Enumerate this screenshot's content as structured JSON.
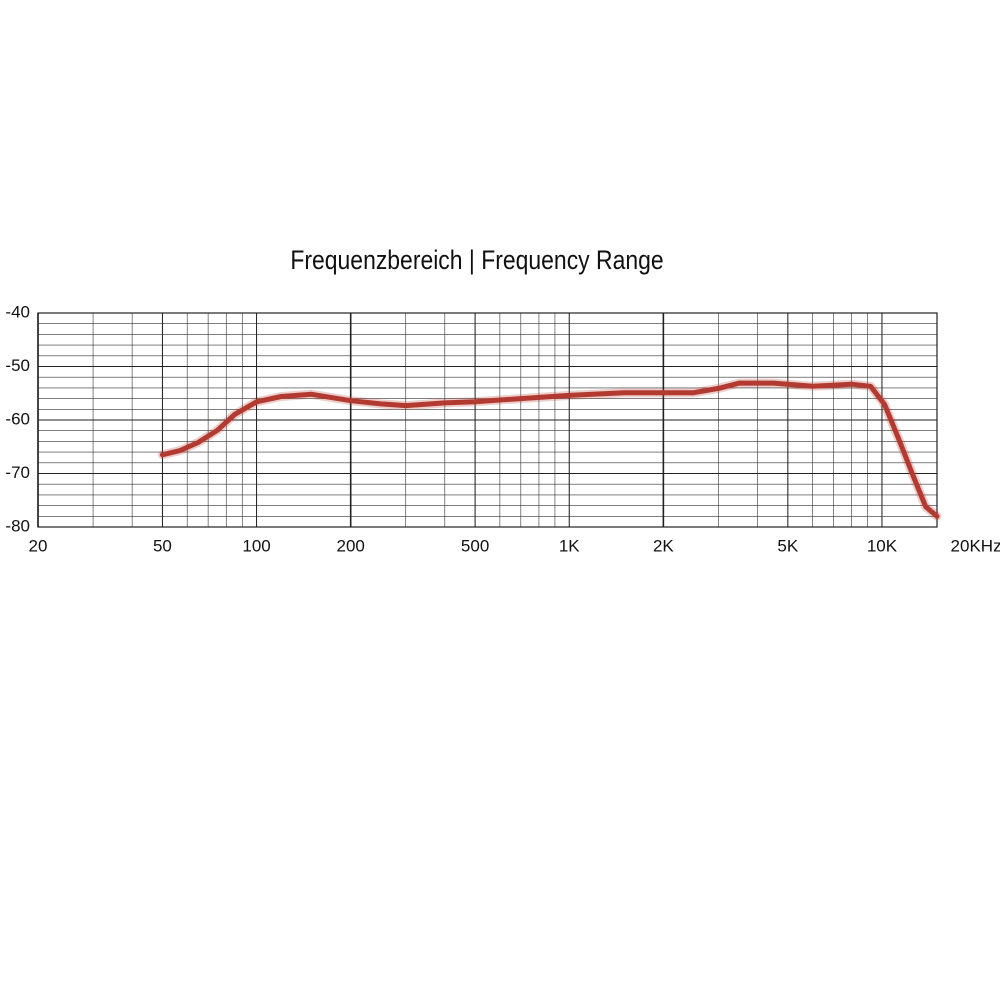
{
  "chart_data": {
    "type": "line",
    "title": "Frequenzbereich | Frequency Range",
    "x": [
      50,
      57,
      65,
      75,
      85,
      100,
      120,
      150,
      200,
      250,
      300,
      400,
      500,
      700,
      1000,
      1500,
      2000,
      2500,
      3000,
      3500,
      4500,
      6000,
      8000,
      9200,
      10200,
      11400,
      12500,
      13800,
      15000
    ],
    "series": [
      {
        "color": "#b23a30",
        "values": [
          -66.5,
          -65.7,
          -64.2,
          -61.9,
          -59,
          -56.6,
          -55.6,
          -55.2,
          -56.4,
          -57,
          -57.3,
          -56.8,
          -56.6,
          -56,
          -55.4,
          -54.9,
          -54.9,
          -54.9,
          -54.1,
          -53.1,
          -53.1,
          -53.7,
          -53.3,
          -53.7,
          -57.1,
          -64,
          -70,
          -76.2,
          -78
        ]
      }
    ],
    "xlog": true,
    "xlim": [
      20,
      15000
    ],
    "xticks": [
      20,
      50,
      100,
      200,
      500,
      {
        "value": 1000,
        "label": "1K"
      },
      {
        "value": 2000,
        "label": "2K"
      },
      {
        "value": 5000,
        "label": "5K"
      },
      {
        "value": 10000,
        "label": "10K"
      },
      {
        "value": 20000,
        "label": "20KHz"
      }
    ],
    "ylim": [
      -80,
      -40
    ],
    "yticks": [
      -40,
      -50,
      -60,
      -70,
      -80
    ],
    "grid": true,
    "minor_grid": true
  }
}
